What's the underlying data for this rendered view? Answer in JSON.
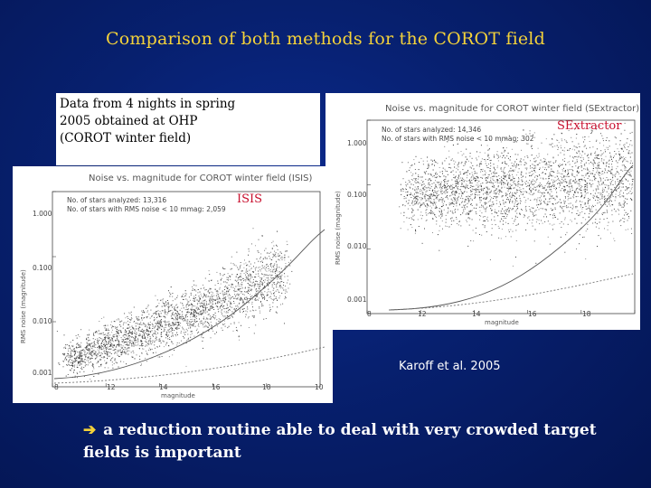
{
  "title": "Comparison of both methods for the COROT field",
  "description": {
    "line1": "Data from 4 nights in spring",
    "line2": "2005 obtained at OHP",
    "line3": "(COROT winter field)"
  },
  "plot_sextractor": {
    "title": "Noise vs. magnitude for COROT winter field (SExtractor)",
    "stars_analyzed": "No. of stars analyzed: 14,346",
    "stars_rms": "No. of stars with RMS noise < 10 mmag: 302",
    "method_label": "SExtractor",
    "y_label": "RMS noise (magnitude)",
    "x_label": "magnitude",
    "y_ticks": [
      "1.000",
      "0.100",
      "0.010",
      "0.001"
    ],
    "x_ticks": [
      "8",
      "10",
      "12",
      "14",
      "16",
      "18"
    ]
  },
  "plot_isis": {
    "title": "Noise vs. magnitude for COROT winter field (ISIS)",
    "stars_analyzed": "No. of stars analyzed: 13,316",
    "stars_rms": "No. of stars with RMS noise < 10 mmag: 2,059",
    "method_label": "ISIS",
    "y_label": "RMS noise (magnitude)",
    "x_label": "magnitude",
    "y_ticks": [
      "1.000",
      "0.100",
      "0.010",
      "0.001"
    ],
    "x_ticks": [
      "8",
      "10",
      "12",
      "14",
      "16",
      "18"
    ]
  },
  "credit": "Karoff et al. 2005",
  "conclusion": {
    "arrow": "➔",
    "text": "a reduction routine able to deal with very crowded target fields is important"
  },
  "colors": {
    "background": "#07206f",
    "title": "#f4d23a",
    "method_label": "#c8102e",
    "text": "#ffffff"
  }
}
